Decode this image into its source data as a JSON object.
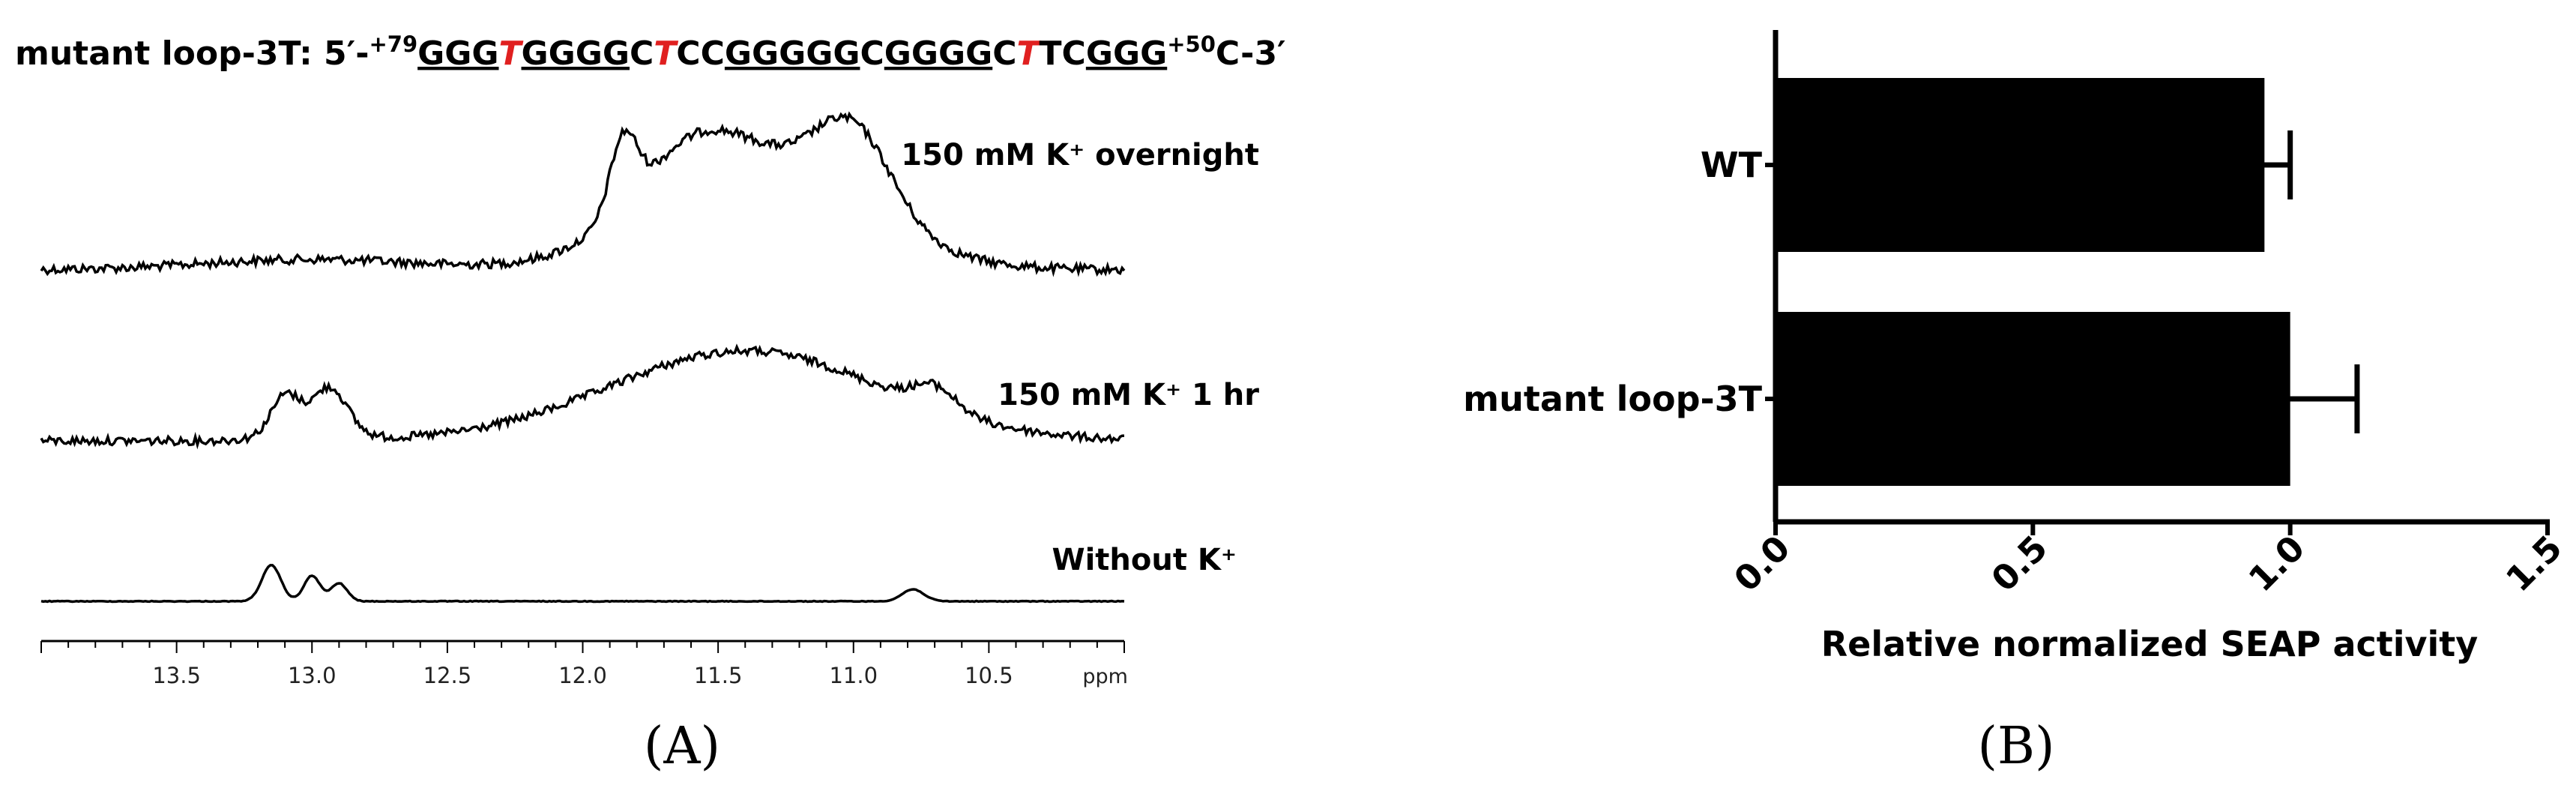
{
  "panel_a": {
    "sequence": {
      "prefix": "mutant loop-3T: 5′-",
      "start_sup": "+79",
      "segments": [
        {
          "text": "GGG",
          "underline": true,
          "red": false
        },
        {
          "text": "T",
          "underline": false,
          "red": true
        },
        {
          "text": "GGGG",
          "underline": true,
          "red": false
        },
        {
          "text": "C",
          "underline": false,
          "red": false
        },
        {
          "text": "T",
          "underline": false,
          "red": true
        },
        {
          "text": "CC",
          "underline": false,
          "red": false
        },
        {
          "text": "GGGGG",
          "underline": true,
          "red": false
        },
        {
          "text": "C",
          "underline": false,
          "red": false
        },
        {
          "text": "GGGG",
          "underline": true,
          "red": false
        },
        {
          "text": "C",
          "underline": false,
          "red": false
        },
        {
          "text": "T",
          "underline": false,
          "red": true
        },
        {
          "text": "TC",
          "underline": false,
          "red": false
        },
        {
          "text": "GGG",
          "underline": true,
          "red": false
        }
      ],
      "end_sup": "+50",
      "suffix": "C-3′"
    },
    "spectra_labels": [
      "150 mM K⁺ overnight",
      "150 mM K⁺ 1 hr",
      "Without K⁺"
    ],
    "axis": {
      "unit": "ppm",
      "ticks": [
        "13.5",
        "13.0",
        "12.5",
        "12.0",
        "11.5",
        "11.0",
        "10.5"
      ]
    },
    "label": "(A)"
  },
  "panel_b": {
    "label": "(B)"
  },
  "chart_data": {
    "type": "bar",
    "orientation": "horizontal",
    "categories": [
      "WT",
      "mutant loop-3T"
    ],
    "values": [
      0.95,
      1.0
    ],
    "errors": [
      0.05,
      0.13
    ],
    "xlabel": "Relative normalized SEAP activity",
    "ylabel": "",
    "xlim": [
      0.0,
      1.5
    ],
    "xticks": [
      "0.0",
      "0.5",
      "1.0",
      "1.5"
    ],
    "bar_color": "#000000",
    "grid": false
  }
}
